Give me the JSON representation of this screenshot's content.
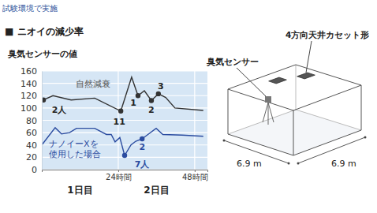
{
  "header": {
    "note": "試験環境で実施",
    "title": "■ ニオイの減少率"
  },
  "chart_data": {
    "type": "line",
    "y_label": "臭気センサーの値",
    "xlim": [
      0,
      52
    ],
    "xticks": [
      {
        "value": 24,
        "label": "24時間"
      },
      {
        "value": 48,
        "label": "48時間"
      }
    ],
    "ylim": [
      0,
      160
    ],
    "yticks": [
      0,
      20,
      40,
      60,
      80,
      100,
      120,
      140,
      160
    ],
    "grid": true,
    "x_group_labels": [
      "1日目",
      "2日目"
    ],
    "series": [
      {
        "name": "自然減衰",
        "color": "#333333",
        "line_style": "solid",
        "x": [
          0.5,
          3.5,
          9.2,
          16.6,
          24.8,
          28.2,
          30.2,
          32.2,
          34.4,
          36.6,
          38.9,
          41.8,
          50.7
        ],
        "values": [
          113,
          120,
          113,
          116,
          95,
          150,
          120,
          128,
          112,
          123,
          117,
          100,
          96
        ]
      },
      {
        "name": "ナノイーXを\n使用した場合",
        "color": "#2b4ca0",
        "line_style": "solid",
        "x": [
          0,
          4.2,
          6.2,
          8.7,
          10.9,
          16.6,
          20.3,
          21.8,
          23,
          24.5,
          26,
          28,
          29.5,
          31.5,
          35.9,
          38,
          44,
          50.7
        ],
        "values": [
          40,
          68,
          58,
          60,
          67,
          67,
          57,
          57,
          45,
          52,
          23,
          40,
          46,
          50,
          67,
          57,
          56,
          54
        ]
      }
    ],
    "annotations": [
      {
        "text": "2人",
        "x": 0.5,
        "y": 113,
        "series": 0
      },
      {
        "text": "11",
        "x": 24.8,
        "y": 95,
        "series": 0
      },
      {
        "text": "1",
        "x": 30.2,
        "y": 120,
        "series": 0
      },
      {
        "text": "2",
        "x": 34.4,
        "y": 112,
        "series": 0
      },
      {
        "text": "3",
        "x": 36.6,
        "y": 123,
        "series": 0
      },
      {
        "text": "7人",
        "x": 26,
        "y": 23,
        "series": 1
      },
      {
        "text": "2",
        "x": 31.5,
        "y": 50,
        "series": 1
      }
    ]
  },
  "diagram": {
    "sensor_label": "臭気センサー",
    "unit_label": "4方向天井カセット形",
    "width_label": "6.9 m",
    "depth_label": "6.9 m"
  }
}
